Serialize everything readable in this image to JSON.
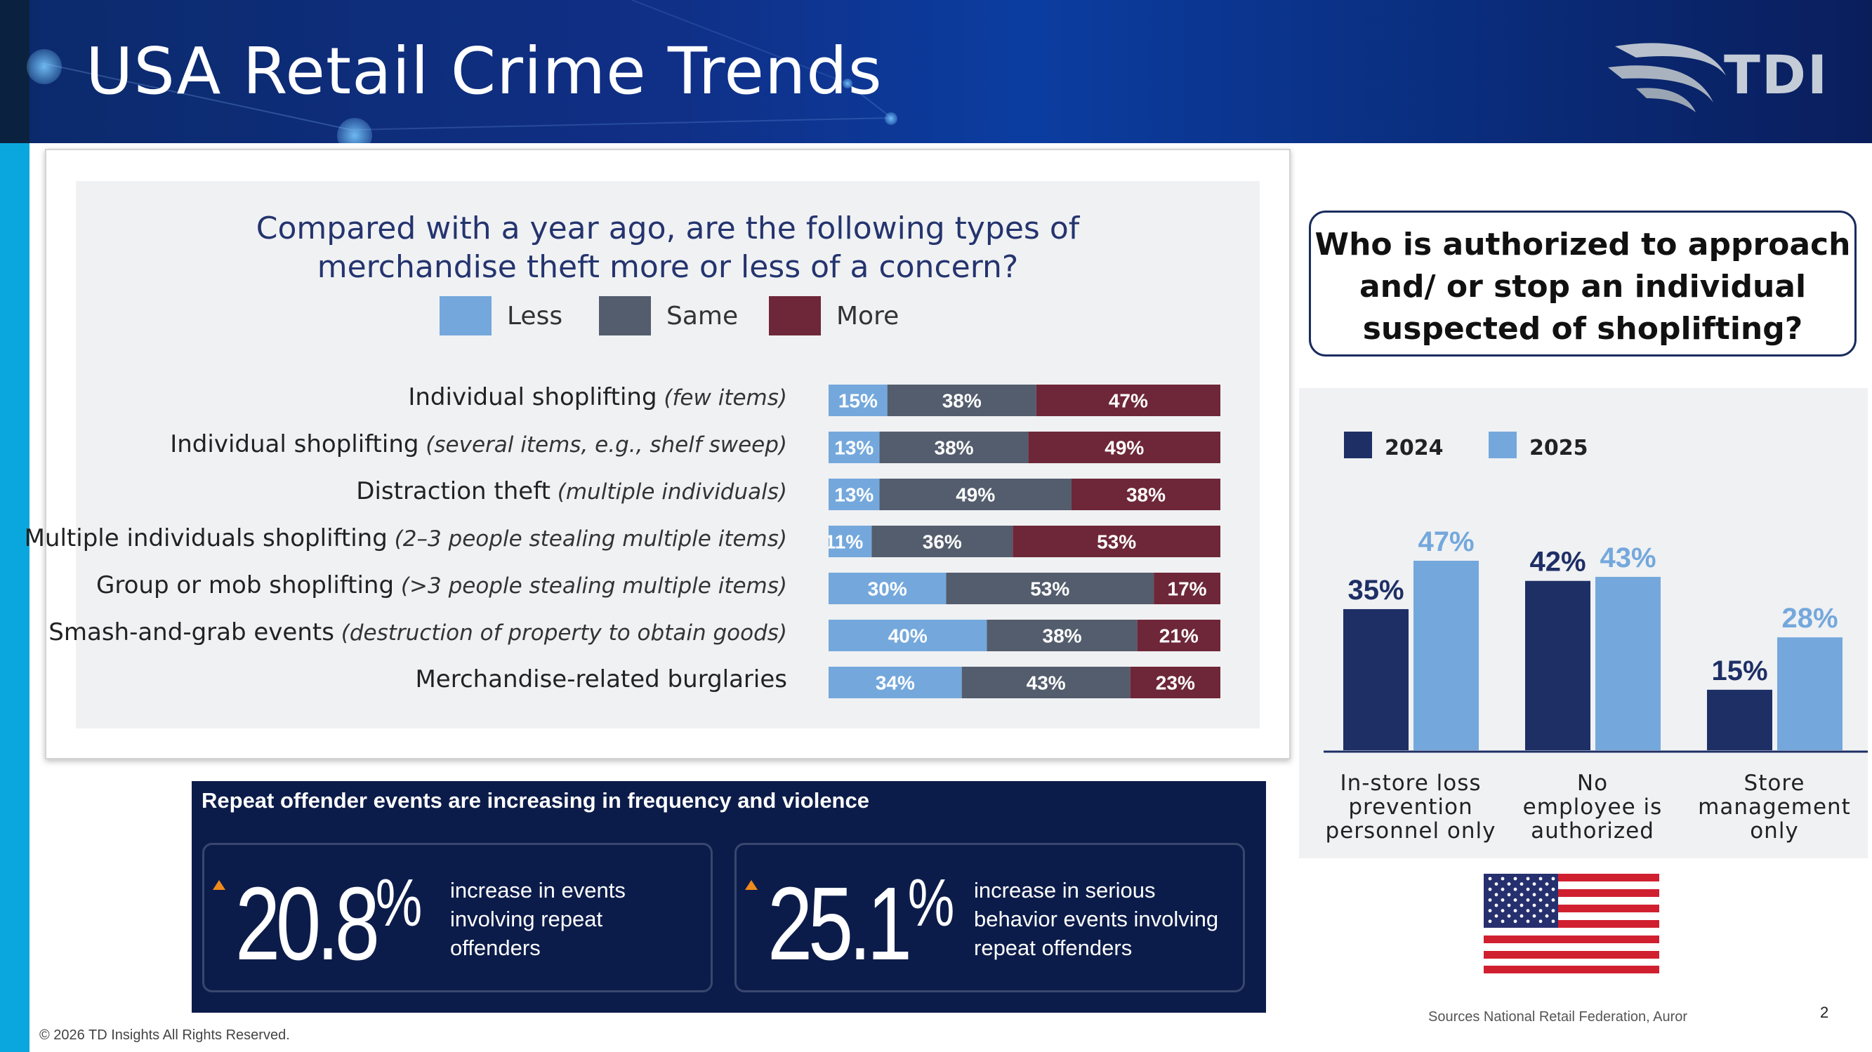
{
  "header": {
    "title": "USA Retail Crime Trends",
    "logo_text": "TDI"
  },
  "survey": {
    "question": "Compared with a year ago, are the following types of merchandise theft more or less of a concern?",
    "question_line1": "Compared with a year ago, are the following types of",
    "question_line2": "merchandise theft more or less of a concern?",
    "legend": [
      {
        "label": "Less",
        "color": "#74a8dc"
      },
      {
        "label": "Same",
        "color": "#545d6d"
      },
      {
        "label": "More",
        "color": "#6e2738"
      }
    ],
    "rows": [
      {
        "label": "Individual shoplifting",
        "note": "(few items)"
      },
      {
        "label": "Individual shoplifting",
        "note": "(several items, e.g., shelf sweep)"
      },
      {
        "label": "Distraction theft",
        "note": "(multiple individuals)"
      },
      {
        "label": "Multiple individuals shoplifting",
        "note": "(2–3 people stealing multiple items)"
      },
      {
        "label": "Group or mob shoplifting",
        "note": "(>3 people stealing multiple items)"
      },
      {
        "label": "Smash-and-grab events",
        "note": "(destruction of property to obtain goods)"
      },
      {
        "label": "Merchandise-related burglaries",
        "note": ""
      }
    ]
  },
  "chart_data": [
    {
      "type": "bar",
      "orientation": "horizontal-stacked-100",
      "title": "Compared with a year ago, are the following types of merchandise theft more or less of a concern?",
      "categories": [
        "Individual shoplifting (few items)",
        "Individual shoplifting (several items, e.g., shelf sweep)",
        "Distraction theft (multiple individuals)",
        "Multiple individuals shoplifting (2–3 people stealing multiple items)",
        "Group or mob shoplifting (>3 people stealing multiple items)",
        "Smash-and-grab events (destruction of property to obtain goods)",
        "Merchandise-related burglaries"
      ],
      "series": [
        {
          "name": "Less",
          "color": "#74a8dc",
          "values": [
            15,
            13,
            13,
            11,
            30,
            40,
            34
          ]
        },
        {
          "name": "Same",
          "color": "#545d6d",
          "values": [
            38,
            38,
            49,
            36,
            53,
            38,
            43
          ]
        },
        {
          "name": "More",
          "color": "#6e2738",
          "values": [
            47,
            49,
            38,
            53,
            17,
            21,
            23
          ]
        }
      ],
      "legend_position": "top",
      "grid": false
    },
    {
      "type": "bar",
      "title": "Who is authorized to approach and/ or stop an individual suspected of shoplifting?",
      "categories": [
        "In-store loss prevention personnel only",
        "No employee is authorized",
        "Store management only"
      ],
      "category_lines": [
        [
          "In-store loss",
          "prevention",
          "personnel only"
        ],
        [
          "No",
          "employee is",
          "authorized"
        ],
        [
          "Store",
          "management",
          "only"
        ]
      ],
      "series": [
        {
          "name": "2024",
          "color": "#1e2f66",
          "values": [
            35,
            42,
            15
          ]
        },
        {
          "name": "2025",
          "color": "#74a8dc",
          "values": [
            47,
            43,
            28
          ]
        }
      ],
      "ylim": [
        0,
        55
      ],
      "legend_position": "top-left",
      "grid": false
    }
  ],
  "repeat": {
    "title": "Repeat offender events are increasing in frequency and violence",
    "stats": [
      {
        "value": "20.8",
        "unit": "%",
        "desc_lines": [
          "increase in events",
          "involving repeat",
          "offenders"
        ]
      },
      {
        "value": "25.1",
        "unit": "%",
        "desc_lines": [
          "increase in serious",
          "behavior events involving",
          "repeat offenders"
        ]
      }
    ]
  },
  "authorized": {
    "line1": "Who is authorized to approach",
    "line2": "and/ or stop an individual",
    "line3": "suspected of shoplifting?"
  },
  "footer": {
    "source": "Sources National Retail Federation, Auror",
    "page": "2",
    "copyright": "© 2026 TD Insights All Rights Reserved."
  }
}
